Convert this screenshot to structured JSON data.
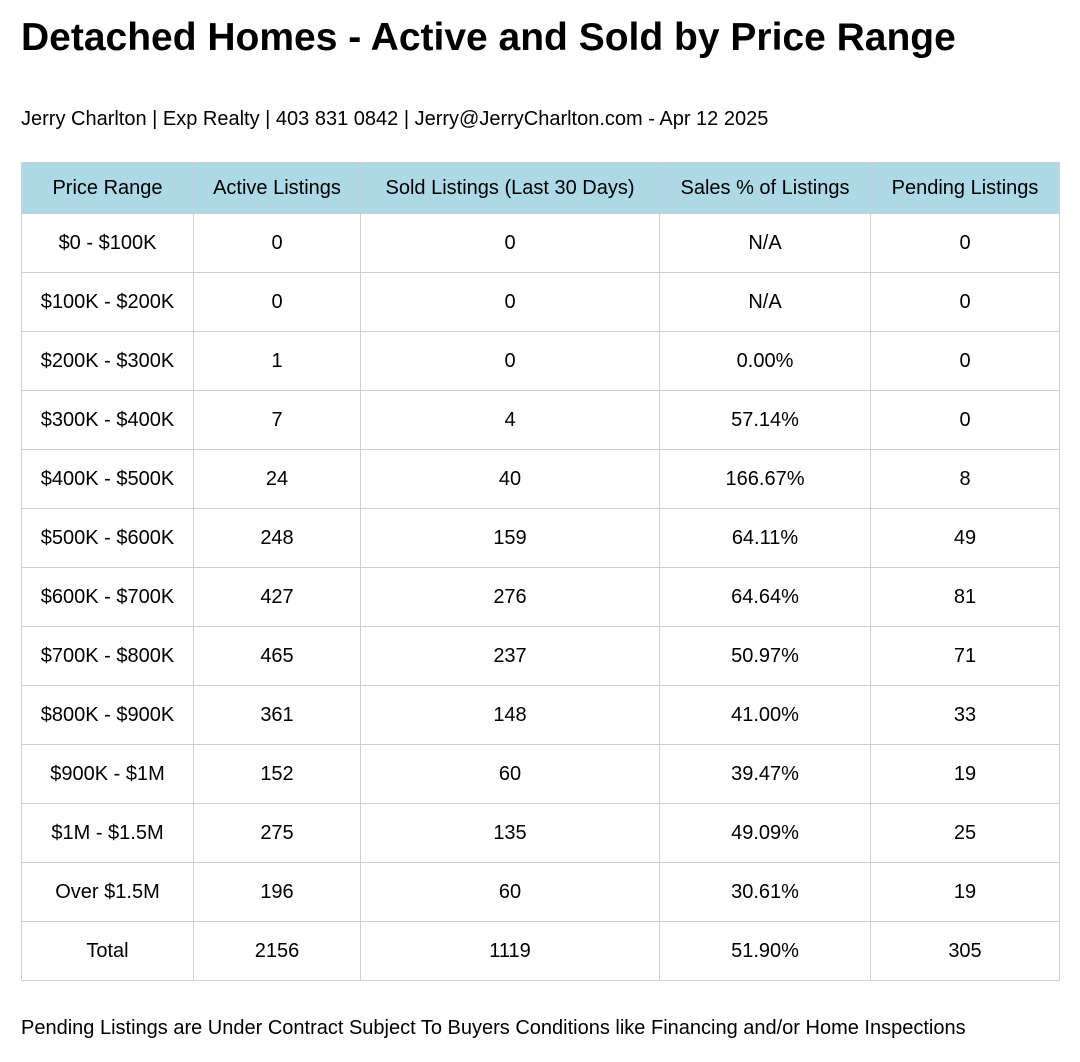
{
  "title": "Detached Homes - Active and Sold by Price Range",
  "byline": "Jerry Charlton | Exp Realty | 403 831 0842 | Jerry@JerryCharlton.com - Apr 12 2025",
  "table": {
    "headers": [
      "Price Range",
      "Active Listings",
      "Sold Listings (Last 30 Days)",
      "Sales % of Listings",
      "Pending Listings"
    ],
    "rows": [
      [
        "$0 - $100K",
        "0",
        "0",
        "N/A",
        "0"
      ],
      [
        "$100K - $200K",
        "0",
        "0",
        "N/A",
        "0"
      ],
      [
        "$200K - $300K",
        "1",
        "0",
        "0.00%",
        "0"
      ],
      [
        "$300K - $400K",
        "7",
        "4",
        "57.14%",
        "0"
      ],
      [
        "$400K - $500K",
        "24",
        "40",
        "166.67%",
        "8"
      ],
      [
        "$500K - $600K",
        "248",
        "159",
        "64.11%",
        "49"
      ],
      [
        "$600K - $700K",
        "427",
        "276",
        "64.64%",
        "81"
      ],
      [
        "$700K - $800K",
        "465",
        "237",
        "50.97%",
        "71"
      ],
      [
        "$800K - $900K",
        "361",
        "148",
        "41.00%",
        "33"
      ],
      [
        "$900K - $1M",
        "152",
        "60",
        "39.47%",
        "19"
      ],
      [
        "$1M - $1.5M",
        "275",
        "135",
        "49.09%",
        "25"
      ],
      [
        "Over $1.5M",
        "196",
        "60",
        "30.61%",
        "19"
      ],
      [
        "Total",
        "2156",
        "1119",
        "51.90%",
        "305"
      ]
    ]
  },
  "footnote": "Pending Listings are Under Contract Subject To Buyers Conditions like Financing and/or Home Inspections",
  "colors": {
    "header_background": "#add8e6",
    "border": "#cfcfcf"
  }
}
